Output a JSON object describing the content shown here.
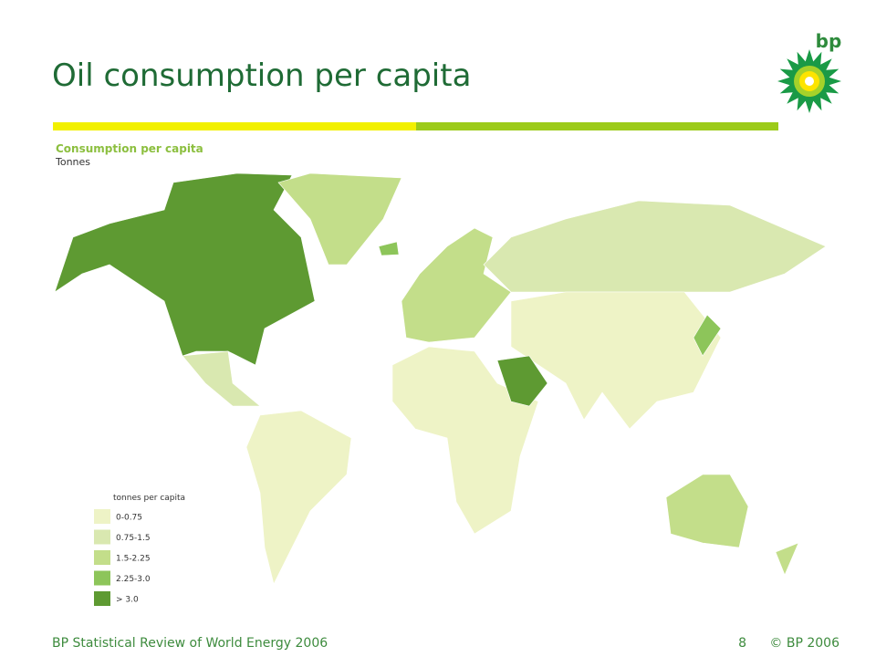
{
  "header": {
    "title": "Oil consumption per capita",
    "logo": "bp"
  },
  "map": {
    "title": "Consumption per capita",
    "unit": "Tonnes",
    "legend": {
      "title": "tonnes per capita",
      "items": [
        {
          "label": "0-0.75",
          "color": "#eef3c6"
        },
        {
          "label": "0.75-1.5",
          "color": "#d9e8b0"
        },
        {
          "label": "1.5-2.25",
          "color": "#c3de8a"
        },
        {
          "label": "2.25-3.0",
          "color": "#8dc55a"
        },
        {
          "label": "> 3.0",
          "color": "#5e9a32"
        }
      ]
    }
  },
  "footer": {
    "source": "BP Statistical Review of World Energy 2006",
    "page": "8",
    "copyright": "© BP 2006"
  }
}
